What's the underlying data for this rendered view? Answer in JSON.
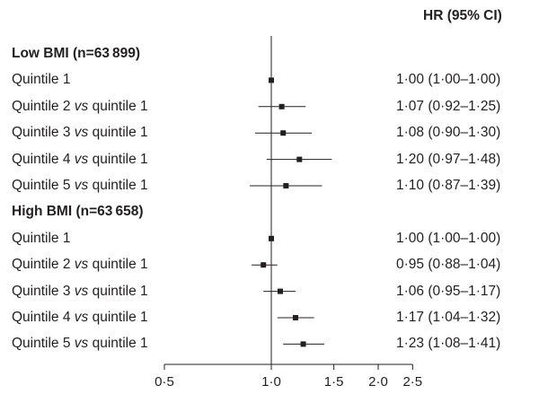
{
  "chart_data": {
    "type": "forest",
    "scale": "log",
    "header_ci": "HR (95% CI)",
    "reference_value": 1.0,
    "xlim": [
      0.5,
      2.5
    ],
    "x_ticks": [
      0.5,
      1.0,
      1.5,
      2.0,
      2.5
    ],
    "x_tick_labels": [
      "0·5",
      "1·0",
      "1·5",
      "2·0",
      "2·5"
    ],
    "groups": [
      {
        "title": "Low BMI (n=63 899)",
        "rows": [
          {
            "label": "Quintile 1",
            "vs": "",
            "hr": 1.0,
            "lo": 1.0,
            "hi": 1.0,
            "text": "1·00 (1·00–1·00)"
          },
          {
            "label": "Quintile 2",
            "vs": "vs",
            "ref": "quintile 1",
            "hr": 1.07,
            "lo": 0.92,
            "hi": 1.25,
            "text": "1·07 (0·92–1·25)"
          },
          {
            "label": "Quintile 3",
            "vs": "vs",
            "ref": "quintile 1",
            "hr": 1.08,
            "lo": 0.9,
            "hi": 1.3,
            "text": "1·08 (0·90–1·30)"
          },
          {
            "label": "Quintile 4",
            "vs": "vs",
            "ref": "quintile 1",
            "hr": 1.2,
            "lo": 0.97,
            "hi": 1.48,
            "text": "1·20 (0·97–1·48)"
          },
          {
            "label": "Quintile 5",
            "vs": "vs",
            "ref": "quintile 1",
            "hr": 1.1,
            "lo": 0.87,
            "hi": 1.39,
            "text": "1·10 (0·87–1·39)"
          }
        ]
      },
      {
        "title": "High BMI (n=63 658)",
        "rows": [
          {
            "label": "Quintile 1",
            "vs": "",
            "hr": 1.0,
            "lo": 1.0,
            "hi": 1.0,
            "text": "1·00 (1·00–1·00)"
          },
          {
            "label": "Quintile 2",
            "vs": "vs",
            "ref": "quintile 1",
            "hr": 0.95,
            "lo": 0.88,
            "hi": 1.04,
            "text": "0·95 (0·88–1·04)"
          },
          {
            "label": "Quintile 3",
            "vs": "vs",
            "ref": "quintile 1",
            "hr": 1.06,
            "lo": 0.95,
            "hi": 1.17,
            "text": "1·06 (0·95–1·17)"
          },
          {
            "label": "Quintile 4",
            "vs": "vs",
            "ref": "quintile 1",
            "hr": 1.17,
            "lo": 1.04,
            "hi": 1.32,
            "text": "1·17 (1·04–1·32)"
          },
          {
            "label": "Quintile 5",
            "vs": "vs",
            "ref": "quintile 1",
            "hr": 1.23,
            "lo": 1.08,
            "hi": 1.41,
            "text": "1·23 (1·08–1·41)"
          }
        ]
      }
    ]
  },
  "colors": {
    "ink": "#231f20"
  }
}
